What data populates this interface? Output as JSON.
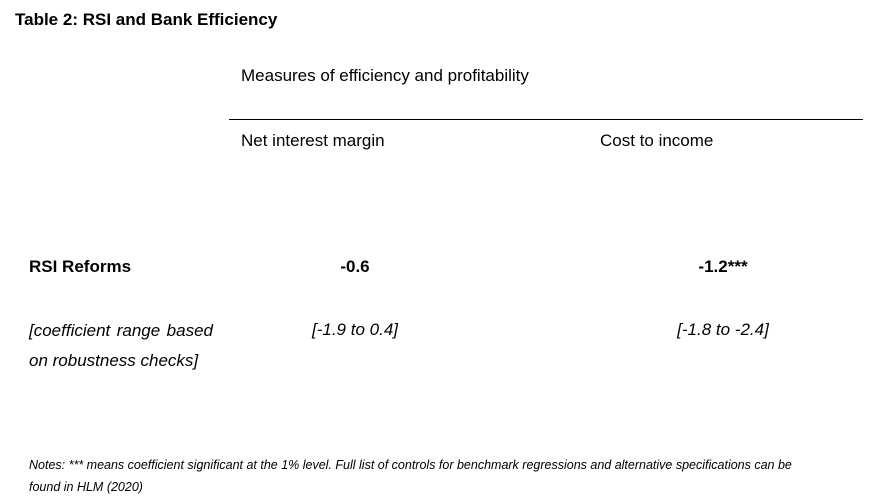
{
  "table": {
    "title": "Table 2:  RSI and Bank Efficiency",
    "group_header": "Measures of efficiency and profitability",
    "columns": [
      "Net interest margin",
      "Cost to income"
    ],
    "rows": [
      {
        "label": "RSI Reforms",
        "values": [
          "-0.6",
          "-1.2***"
        ]
      },
      {
        "label": "[coefficient range based on robustness checks]",
        "values": [
          "[-1.9 to 0.4]",
          "[-1.8 to -2.4]"
        ]
      }
    ],
    "notes": "Notes: *** means coefficient significant at the 1% level. Full list of controls for benchmark regressions and alternative specifications can be found in HLM (2020)"
  }
}
